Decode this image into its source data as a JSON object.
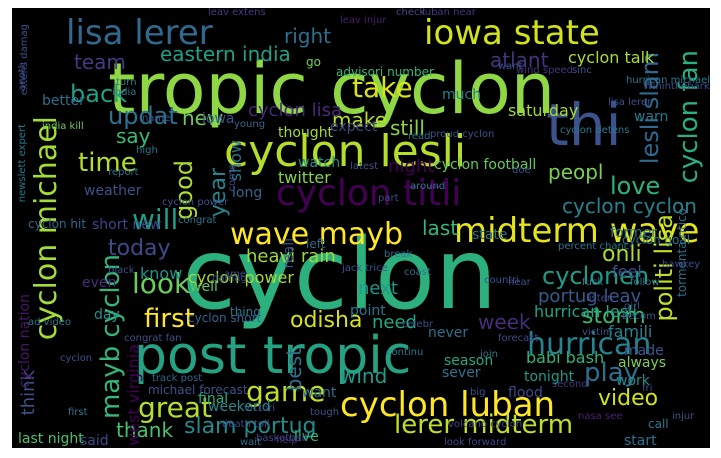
{
  "words": [
    {
      "text": "cyclon",
      "color": "#2cb17e"
    },
    {
      "text": "tropic cyclon",
      "color": "#8fd744"
    },
    {
      "text": "post tropic",
      "color": "#26a181"
    },
    {
      "text": "cyclon lesli",
      "color": "#b5de2b"
    },
    {
      "text": "cyclon titli",
      "color": "#440154"
    },
    {
      "text": "thi",
      "color": "#3b528b"
    },
    {
      "text": "lisa lerer",
      "color": "#31688e"
    },
    {
      "text": "iowa state",
      "color": "#d2e21b"
    },
    {
      "text": "midterm wave",
      "color": "#e5e419"
    },
    {
      "text": "wave mayb",
      "color": "#fde725"
    },
    {
      "text": "cyclon michael",
      "color": "#a5db36"
    },
    {
      "text": "mayb cyclon",
      "color": "#35b779"
    },
    {
      "text": "cyclon luban",
      "color": "#fde725"
    },
    {
      "text": "hurrican",
      "color": "#26828e"
    },
    {
      "text": "lerer midterm",
      "color": "#bddf26"
    },
    {
      "text": "great",
      "color": "#b5de2b"
    },
    {
      "text": "game",
      "color": "#c2df23"
    },
    {
      "text": "take",
      "color": "#d8e219"
    },
    {
      "text": "time",
      "color": "#b5de2b"
    },
    {
      "text": "will",
      "color": "#1f9e89"
    },
    {
      "text": "look",
      "color": "#6ccd5a"
    },
    {
      "text": "first",
      "color": "#fde725"
    },
    {
      "text": "today",
      "color": "#3e4a89"
    },
    {
      "text": "updat",
      "color": "#2c728e"
    },
    {
      "text": "back",
      "color": "#1fa187"
    },
    {
      "text": "good",
      "color": "#addc30"
    },
    {
      "text": "year",
      "color": "#25848e"
    },
    {
      "text": "love",
      "color": "#2db27d"
    },
    {
      "text": "play",
      "color": "#2e6e8e"
    },
    {
      "text": "video",
      "color": "#d2e21b"
    },
    {
      "text": "storm",
      "color": "#3aba76"
    },
    {
      "text": "cyclonen",
      "color": "#1e9c89"
    },
    {
      "text": "lesli slam",
      "color": "#31688e"
    },
    {
      "text": "cyclon fan",
      "color": "#2ab07f"
    },
    {
      "text": "politi lisa",
      "color": "#bddf26"
    },
    {
      "text": "slam portug",
      "color": "#228c8d"
    },
    {
      "text": "odisha",
      "color": "#d8e219"
    },
    {
      "text": "cyclon cyclon",
      "color": "#26828e"
    },
    {
      "text": "atlant",
      "color": "#46337e"
    },
    {
      "text": "eastern india",
      "color": "#1fa088"
    },
    {
      "text": "team",
      "color": "#443a83"
    },
    {
      "text": "make",
      "color": "#b8de29"
    },
    {
      "text": "still",
      "color": "#8bd646"
    },
    {
      "text": "new",
      "color": "#6ccd5a"
    },
    {
      "text": "say",
      "color": "#3aba76"
    },
    {
      "text": "right",
      "color": "#2d708e"
    },
    {
      "text": "last",
      "color": "#35b779"
    },
    {
      "text": "best",
      "color": "#2d708e"
    },
    {
      "text": "need",
      "color": "#22a884"
    },
    {
      "text": "wind",
      "color": "#1e9b8a"
    },
    {
      "text": "think",
      "color": "#3b528b"
    },
    {
      "text": "thank",
      "color": "#4ac16d"
    },
    {
      "text": "week",
      "color": "#472d7b"
    },
    {
      "text": "peopl",
      "color": "#7ad151"
    },
    {
      "text": "onli",
      "color": "#addc30"
    },
    {
      "text": "next",
      "color": "#1f9a8a"
    },
    {
      "text": "night",
      "color": "#440154"
    },
    {
      "text": "cyclon lisa",
      "color": "#482878"
    },
    {
      "text": "show",
      "color": "#2a788e"
    },
    {
      "text": "portug leav",
      "color": "#38598c"
    },
    {
      "text": "babi bash",
      "color": "#2fb47c"
    },
    {
      "text": "hurrican lesli",
      "color": "#20a386"
    },
    {
      "text": "heavi rain",
      "color": "#9dd93b"
    },
    {
      "text": "cyclon power",
      "color": "#a2da37"
    },
    {
      "text": "west virginia",
      "color": "#440154"
    },
    {
      "text": "know",
      "color": "#20928c"
    },
    {
      "text": "twitter",
      "color": "#86d549"
    },
    {
      "text": "tonight",
      "color": "#1f9a8a"
    },
    {
      "text": "feel",
      "color": "#3e4c8a"
    },
    {
      "text": "saturday",
      "color": "#a2da37"
    },
    {
      "text": "famili",
      "color": "#26828e"
    },
    {
      "text": "cyclon talk",
      "color": "#a8db34"
    },
    {
      "text": "cyclon football",
      "color": "#65cb5e"
    },
    {
      "text": "cyclon nation",
      "color": "#48186a"
    },
    {
      "text": "last night",
      "color": "#4ac16d"
    },
    {
      "text": "weather",
      "color": "#3b528b"
    },
    {
      "text": "short new",
      "color": "#404588"
    },
    {
      "text": "thought",
      "color": "#a2da37"
    },
    {
      "text": "reali",
      "color": "#3b528b"
    },
    {
      "text": "expect",
      "color": "#3f4788"
    },
    {
      "text": "much",
      "color": "#26828e"
    },
    {
      "text": "better",
      "color": "#2d708e"
    },
    {
      "text": "warn",
      "color": "#29798e"
    },
    {
      "text": "former",
      "color": "#2a788e"
    },
    {
      "text": "sever",
      "color": "#2b758e"
    },
    {
      "text": "flood",
      "color": "#3f4889"
    },
    {
      "text": "start",
      "color": "#2c728e"
    },
    {
      "text": "made",
      "color": "#3b528b"
    },
    {
      "text": "work",
      "color": "#218f8d"
    },
    {
      "text": "always",
      "color": "#7ad151"
    },
    {
      "text": "live",
      "color": "#37b878"
    },
    {
      "text": "want",
      "color": "#2e6d8e"
    },
    {
      "text": "day",
      "color": "#21918c"
    },
    {
      "text": "said",
      "color": "#3e4989"
    },
    {
      "text": "final",
      "color": "#29af7f"
    },
    {
      "text": "even",
      "color": "#472d7b"
    },
    {
      "text": "well",
      "color": "#5ec962"
    },
    {
      "text": "point",
      "color": "#2a768e"
    },
    {
      "text": "never",
      "color": "#2d718e"
    },
    {
      "text": "season",
      "color": "#22a884"
    },
    {
      "text": "go",
      "color": "#7ad151"
    },
    {
      "text": "watch",
      "color": "#20928c"
    },
    {
      "text": "long",
      "color": "#32658e"
    },
    {
      "text": "left",
      "color": "#2f6b8e"
    },
    {
      "text": "state",
      "color": "#2c738e"
    },
    {
      "text": "weekend",
      "color": "#228c8d"
    },
    {
      "text": "iowa",
      "color": "#3a538b"
    },
    {
      "text": "advisori number",
      "color": "#35b779"
    },
    {
      "text": "cyclon short",
      "color": "#32658e"
    },
    {
      "text": "michael forecast",
      "color": "#3b528b"
    },
    {
      "text": "cyclon goal",
      "color": "#2a788e"
    },
    {
      "text": "tormenta ntico",
      "color": "#2d708e"
    },
    {
      "text": "cyclon hit",
      "color": "#31688e"
    },
    {
      "text": "india kill",
      "color": "#6ece58"
    },
    {
      "text": "extens damag",
      "color": "#3a548c"
    },
    {
      "text": "newslett expert",
      "color": "#2a788e"
    },
    {
      "text": "congrat fan",
      "color": "#3b528b"
    },
    {
      "text": "ad video",
      "color": "#2a788e"
    },
    {
      "text": "percent chanc",
      "color": "#2a788e"
    },
    {
      "text": "nasa see",
      "color": "#482374"
    },
    {
      "text": "volcano cyclon",
      "color": "#404588"
    },
    {
      "text": "death toll",
      "color": "#3e4a89"
    },
    {
      "text": "basketball",
      "color": "#3e4a89"
    },
    {
      "text": "track post",
      "color": "#31688e"
    },
    {
      "text": "victori",
      "color": "#3b528b"
    },
    {
      "text": "proud cyclon",
      "color": "#3b528b"
    },
    {
      "text": "leav injur",
      "color": "#481f70"
    },
    {
      "text": "luban near",
      "color": "#453781"
    },
    {
      "text": "leav extens",
      "color": "#443983"
    },
    {
      "text": "check",
      "color": "#3e4a89"
    },
    {
      "text": "cyclon detens",
      "color": "#2a788e"
    },
    {
      "text": "young",
      "color": "#31688e"
    },
    {
      "text": "come",
      "color": "#3e4a89"
    },
    {
      "text": "latest",
      "color": "#3b528b"
    },
    {
      "text": "break",
      "color": "#2c728e"
    },
    {
      "text": "coast",
      "color": "#2c728e"
    },
    {
      "text": "continu",
      "color": "#2a788e"
    },
    {
      "text": "join",
      "color": "#2a788e"
    },
    {
      "text": "black",
      "color": "#3b528b"
    },
    {
      "text": "turn",
      "color": "#2a788e"
    },
    {
      "text": "help",
      "color": "#46337e"
    },
    {
      "text": "wait",
      "color": "#2c728e"
    },
    {
      "text": "read",
      "color": "#2c728e"
    },
    {
      "text": "second",
      "color": "#443a83"
    },
    {
      "text": "call",
      "color": "#2a788e"
    },
    {
      "text": "injur",
      "color": "#3b528b"
    },
    {
      "text": "fuck",
      "color": "#2a788e"
    },
    {
      "text": "countri",
      "color": "#3b528b"
    },
    {
      "text": "victim",
      "color": "#3b528b"
    },
    {
      "text": "listen",
      "color": "#3e4a89"
    },
    {
      "text": "becom",
      "color": "#3b528b"
    },
    {
      "text": "thing",
      "color": "#2a788e"
    },
    {
      "text": "damag",
      "color": "#3b528b"
    },
    {
      "text": "name",
      "color": "#3b528b"
    },
    {
      "text": "high",
      "color": "#2a788e"
    },
    {
      "text": "report",
      "color": "#2c728e"
    },
    {
      "text": "around",
      "color": "#2a788e"
    },
    {
      "text": "part",
      "color": "#3e4a89"
    },
    {
      "text": "sinc",
      "color": "#3b528b"
    },
    {
      "text": "wind speed",
      "color": "#46337e"
    },
    {
      "text": "hurrican michael",
      "color": "#2a788e"
    },
    {
      "text": "lisa lerer",
      "color": "#3b528b"
    },
    {
      "text": "want",
      "color": "#3b528b"
    },
    {
      "text": "hawkey",
      "color": "#3e4a89"
    },
    {
      "text": "celebr",
      "color": "#3b528b"
    },
    {
      "text": "india",
      "color": "#2a788e"
    },
    {
      "text": "Wininthebark",
      "color": "#3b528b"
    },
    {
      "text": "anoth",
      "color": "#3e4a89"
    },
    {
      "text": "doe",
      "color": "#3b528b"
    },
    {
      "text": "forecast",
      "color": "#3e4a89"
    },
    {
      "text": "near",
      "color": "#3b528b"
    },
    {
      "text": "follow",
      "color": "#2a788e"
    },
    {
      "text": "girl",
      "color": "#3b528b"
    },
    {
      "text": "fri",
      "color": "#3e4a89"
    },
    {
      "text": "ame",
      "color": "#3b528b"
    },
    {
      "text": "congrat",
      "color": "#2a788e"
    },
    {
      "text": "tough",
      "color": "#3b528b"
    },
    {
      "text": "look forward",
      "color": "#3e4a89"
    },
    {
      "text": "cyclon power",
      "color": "#3b528b"
    },
    {
      "text": "jack trice",
      "color": "#3b528b"
    },
    {
      "text": "first",
      "color": "#2a788e"
    },
    {
      "text": "cyclon",
      "color": "#3b528b"
    },
    {
      "text": "big",
      "color": "#3b528b"
    }
  ]
}
